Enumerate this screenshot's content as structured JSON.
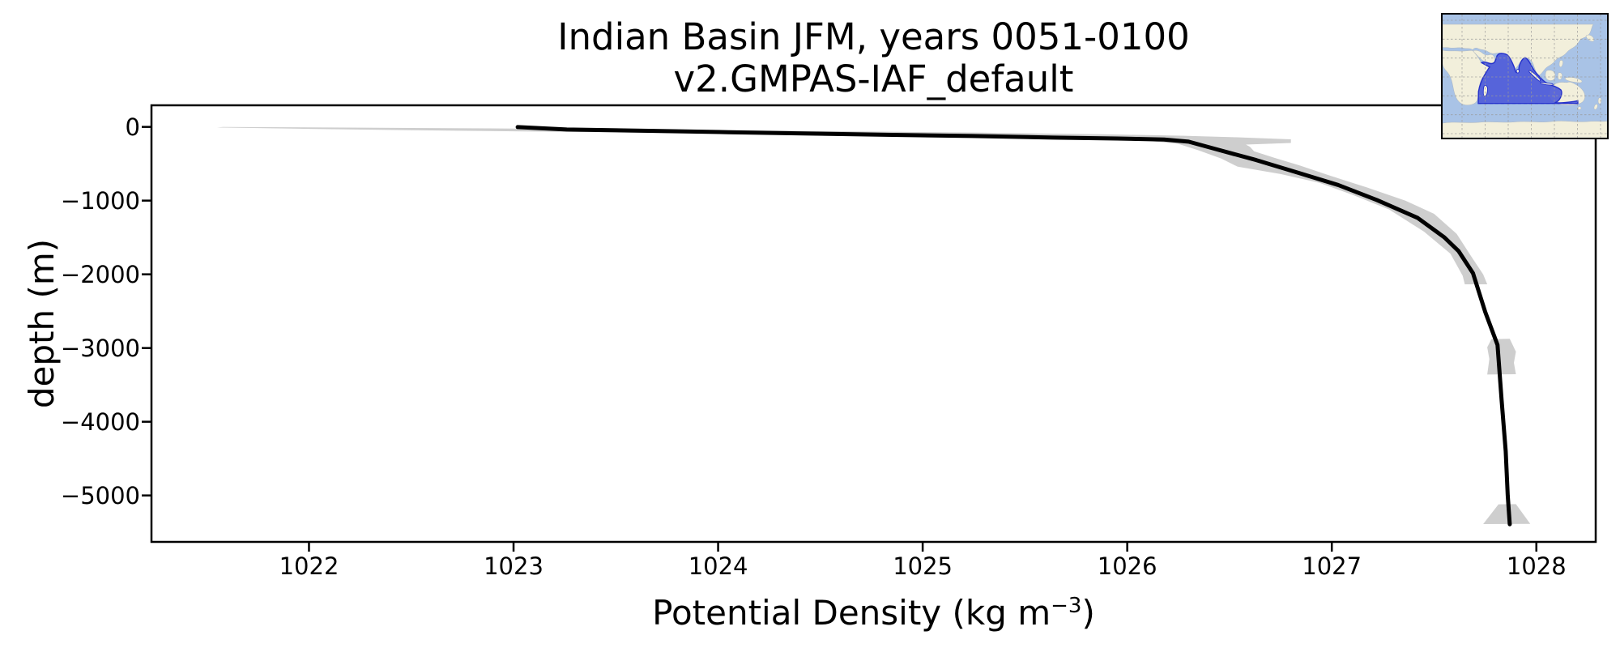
{
  "title": {
    "line1": "Indian Basin JFM, years 0051-0100",
    "line2": "v2.GMPAS-IAF_default"
  },
  "axes": {
    "xlabel_prefix": "Potential Density (kg m",
    "xlabel_sup": "−3",
    "xlabel_suffix": ")",
    "ylabel": "depth (m)",
    "x_tick_values": [
      1022,
      1023,
      1024,
      1025,
      1026,
      1027,
      1028
    ],
    "x_tick_labels": [
      "1022",
      "1023",
      "1024",
      "1025",
      "1026",
      "1027",
      "1028"
    ],
    "y_tick_values": [
      0,
      -1000,
      -2000,
      -3000,
      -4000,
      -5000
    ],
    "y_tick_labels": [
      "0",
      "−1000",
      "−2000",
      "−3000",
      "−4000",
      "−5000"
    ]
  },
  "chart_data": {
    "type": "line",
    "title": "Indian Basin JFM, years 0051-0100 — v2.GMPAS-IAF_default",
    "xlabel": "Potential Density (kg m−3)",
    "ylabel": "depth (m)",
    "xlim": [
      1021.23,
      1028.29
    ],
    "ylim": [
      -5630,
      293
    ],
    "grid": false,
    "legend_position": "none",
    "series": [
      {
        "name": "mean potential density profile",
        "color": "#000000",
        "line_width": 5,
        "points": [
          [
            1023.02,
            -3
          ],
          [
            1023.26,
            -36
          ],
          [
            1023.66,
            -53
          ],
          [
            1024.05,
            -72
          ],
          [
            1024.45,
            -91
          ],
          [
            1024.85,
            -108
          ],
          [
            1025.24,
            -124
          ],
          [
            1025.64,
            -146
          ],
          [
            1025.95,
            -158
          ],
          [
            1026.18,
            -172
          ],
          [
            1026.3,
            -200
          ],
          [
            1026.43,
            -299
          ],
          [
            1026.63,
            -450
          ],
          [
            1026.83,
            -618
          ],
          [
            1027.03,
            -787
          ],
          [
            1027.22,
            -992
          ],
          [
            1027.42,
            -1236
          ],
          [
            1027.55,
            -1498
          ],
          [
            1027.62,
            -1686
          ],
          [
            1027.69,
            -1985
          ],
          [
            1027.75,
            -2510
          ],
          [
            1027.81,
            -2959
          ],
          [
            1027.83,
            -3700
          ],
          [
            1027.85,
            -4400
          ],
          [
            1027.86,
            -5000
          ],
          [
            1027.87,
            -5390
          ]
        ]
      }
    ],
    "band": {
      "name": "density spread (shaded uncertainty)",
      "color": "#cecece",
      "outline": [
        [
          1021.55,
          -8
        ],
        [
          1021.95,
          -25
        ],
        [
          1022.5,
          -45
        ],
        [
          1023.2,
          -65
        ],
        [
          1023.8,
          -85
        ],
        [
          1024.4,
          -105
        ],
        [
          1024.97,
          -125
        ],
        [
          1025.44,
          -148
        ],
        [
          1026.05,
          -175
        ],
        [
          1026.25,
          -230
        ],
        [
          1026.35,
          -320
        ],
        [
          1026.46,
          -430
        ],
        [
          1026.54,
          -540
        ],
        [
          1026.75,
          -640
        ],
        [
          1026.94,
          -760
        ],
        [
          1027.1,
          -920
        ],
        [
          1027.28,
          -1120
        ],
        [
          1027.45,
          -1420
        ],
        [
          1027.58,
          -1720
        ],
        [
          1027.64,
          -2020
        ],
        [
          1027.65,
          -2135
        ],
        [
          1027.76,
          -2135
        ],
        [
          1027.74,
          -2000
        ],
        [
          1027.68,
          -1750
        ],
        [
          1027.61,
          -1450
        ],
        [
          1027.5,
          -1180
        ],
        [
          1027.36,
          -1000
        ],
        [
          1027.17,
          -820
        ],
        [
          1026.99,
          -660
        ],
        [
          1026.84,
          -520
        ],
        [
          1026.72,
          -420
        ],
        [
          1026.62,
          -330
        ],
        [
          1026.6,
          -270
        ],
        [
          1026.58,
          -240
        ],
        [
          1026.8,
          -218
        ],
        [
          1026.8,
          -168
        ],
        [
          1026.52,
          -140
        ],
        [
          1026.28,
          -120
        ],
        [
          1025.88,
          -100
        ],
        [
          1025.28,
          -78
        ],
        [
          1024.48,
          -55
        ],
        [
          1023.68,
          -36
        ],
        [
          1022.88,
          -20
        ],
        [
          1022.08,
          -8
        ],
        [
          1021.58,
          -2
        ]
      ],
      "patches": [
        [
          [
            1027.78,
            -2880
          ],
          [
            1027.87,
            -2875
          ],
          [
            1027.9,
            -3050
          ],
          [
            1027.89,
            -3200
          ],
          [
            1027.9,
            -3355
          ],
          [
            1027.76,
            -3360
          ],
          [
            1027.77,
            -3150
          ],
          [
            1027.76,
            -2990
          ]
        ],
        [
          [
            1027.815,
            -5120
          ],
          [
            1027.9,
            -5118
          ],
          [
            1027.97,
            -5385
          ],
          [
            1027.74,
            -5388
          ]
        ]
      ]
    },
    "colors": {
      "line": "#000000",
      "band": "#cecece",
      "background": "#ffffff",
      "spine": "#000000",
      "text": "#000000"
    }
  },
  "inset_map": {
    "highlighted_region": "Indian Basin",
    "colors": {
      "ocean": "#a9c3e6",
      "land": "#f2efdb",
      "coast": "#aeb6bf",
      "basin": "#4f5cd9",
      "basin-edge": "#2531cb",
      "grid": "#999999",
      "border": "#000000"
    }
  }
}
